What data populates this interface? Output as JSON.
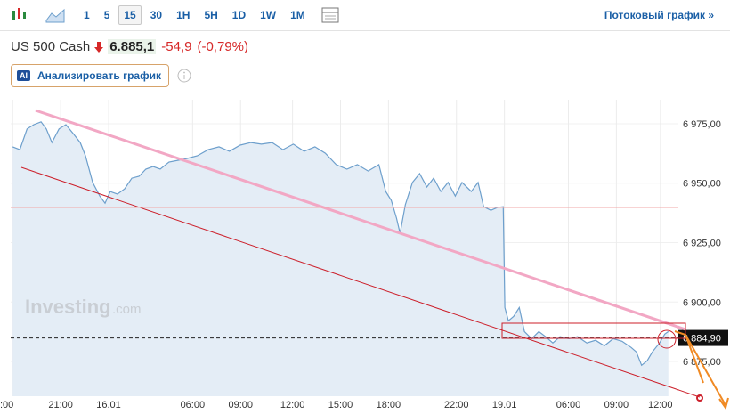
{
  "toolbar": {
    "intervals": [
      "1",
      "5",
      "15",
      "30",
      "1H",
      "5H",
      "1D",
      "1W",
      "1M"
    ],
    "selected": "15",
    "stream_link": "Потоковый график »"
  },
  "header": {
    "symbol": "US 500 Cash",
    "price": "6.885,1",
    "change": "-54,9",
    "change_pct": "(-0,79%)",
    "ai_badge": "AI",
    "ai_button": "Анализировать график"
  },
  "watermark": {
    "brand": "Investing",
    "suffix": ".com"
  },
  "chart_data": {
    "type": "area",
    "color": "#6d9fcc",
    "fill": "#e4edf6",
    "x": [
      0,
      1.8,
      3.6,
      5.3,
      7.1,
      8.4,
      9.8,
      11.6,
      13.3,
      15.1,
      16.9,
      18.2,
      20,
      21.8,
      23.1,
      24.4,
      26.2,
      28,
      29.8,
      31.6,
      33.3,
      35.1,
      36.9,
      39.1,
      41.3,
      43.6,
      46.2,
      48.9,
      51.6,
      54.2,
      56.9,
      59.6,
      62.2,
      64.9,
      67.6,
      70.2,
      72.9,
      75.6,
      78.2,
      80.9,
      83.6,
      86.2,
      88.9,
      91.6,
      93.3,
      94.7,
      96,
      96.9,
      98.2,
      100,
      101.8,
      103.6,
      105.3,
      107.1,
      108.9,
      110.7,
      112.4,
      114.7,
      116.4,
      117.8,
      119.6,
      121.3,
      122.7,
      123.1,
      124,
      125.3,
      126.7,
      128,
      129.8,
      131.6,
      133.3,
      135.1,
      136.9,
      139.1,
      141.3,
      143.6,
      145.8,
      148,
      150.2,
      152.4,
      154.7,
      156,
      157.3,
      158.7,
      160,
      161.8,
      163.1,
      164
    ],
    "values": [
      6965.3,
      6964.1,
      6972.8,
      6974.6,
      6975.8,
      6972.8,
      6967.1,
      6972.8,
      6974.6,
      6970.9,
      6967.1,
      6961.5,
      6950.3,
      6944.6,
      6941.6,
      6946.5,
      6945.4,
      6947.6,
      6952.1,
      6952.9,
      6955.9,
      6957.0,
      6955.9,
      6958.9,
      6959.6,
      6960.4,
      6961.5,
      6964.1,
      6965.3,
      6963.4,
      6966.0,
      6967.1,
      6966.4,
      6967.1,
      6964.1,
      6966.4,
      6963.4,
      6965.3,
      6962.6,
      6957.8,
      6955.9,
      6957.8,
      6955.1,
      6957.8,
      6946.5,
      6942.8,
      6935.3,
      6928.9,
      6940.9,
      6950.3,
      6954.0,
      6948.4,
      6952.1,
      6946.5,
      6950.3,
      6944.6,
      6950.3,
      6946.5,
      6950.3,
      6940.1,
      6938.6,
      6939.8,
      6940.1,
      6897.7,
      6892.1,
      6894.0,
      6897.7,
      6887.6,
      6884.6,
      6887.6,
      6885.4,
      6882.8,
      6885.4,
      6884.6,
      6885.4,
      6882.8,
      6883.9,
      6881.6,
      6884.6,
      6883.5,
      6880.9,
      6879.0,
      6873.4,
      6875.3,
      6879.0,
      6882.8,
      6886.5,
      6887.6
    ],
    "xlim": [
      -0.5,
      166.5
    ],
    "ylim": [
      6860.4,
      6985.1
    ],
    "yticks": [
      {
        "value": 6975,
        "label": "6 975,00"
      },
      {
        "value": 6950,
        "label": "6 950,00"
      },
      {
        "value": 6925,
        "label": "6 925,00"
      },
      {
        "value": 6900,
        "label": "6 900,00"
      },
      {
        "value": 6875,
        "label": "6 875,00"
      }
    ],
    "xticks": [
      {
        "value": 0,
        "label": ":00"
      },
      {
        "value": 12,
        "label": "21:00"
      },
      {
        "value": 24,
        "label": "16.01"
      },
      {
        "value": 45,
        "label": "06:00"
      },
      {
        "value": 57,
        "label": "09:00"
      },
      {
        "value": 70,
        "label": "12:00"
      },
      {
        "value": 82,
        "label": "15:00"
      },
      {
        "value": 94,
        "label": "18:00"
      },
      {
        "value": 111,
        "label": "22:00"
      },
      {
        "value": 123,
        "label": "19.01"
      },
      {
        "value": 139,
        "label": "06:00"
      },
      {
        "value": 151,
        "label": "09:00"
      },
      {
        "value": 162,
        "label": "12:00"
      }
    ],
    "last_price": {
      "value": 6884.9,
      "label": "6 884,90"
    },
    "grid": true
  }
}
